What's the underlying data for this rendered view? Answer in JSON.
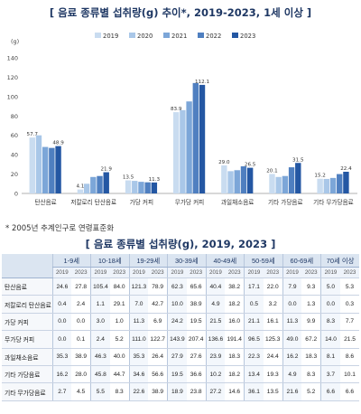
{
  "title_top": "[ 음료 종류별 섭취량(g) 추이*, 2019-2023, 1세 이상 ]",
  "note": "* 2005년 추계인구로 연령표준화",
  "title_bottom": "[ 음료 종류별 섭취량(g), 2019, 2023 ]",
  "colors": {
    "2019": "#c9dcf0",
    "2020": "#a9c7e8",
    "2021": "#7ca6d8",
    "2022": "#4f7fc0",
    "2023": "#2457a3",
    "axis_text": "#444444",
    "grid": "#dddddd"
  },
  "chart_data": {
    "type": "bar",
    "title": "[ 음료 종류별 섭취량(g) 추이*, 2019-2023, 1세 이상 ]",
    "ylabel": "(g)",
    "ylim": [
      0,
      140
    ],
    "yticks": [
      0,
      20,
      40,
      60,
      80,
      100,
      120,
      140
    ],
    "grid": false,
    "legend": "top-center",
    "categories": [
      "탄산음료",
      "저칼로리 탄산음료",
      "가당 커피",
      "무가당 커피",
      "과일채소음료",
      "기타 가당음료",
      "기타 무가당음료"
    ],
    "series": [
      {
        "name": "2019",
        "values": [
          57.7,
          4.1,
          13.5,
          83.9,
          29.0,
          20.1,
          15.2
        ],
        "labels": [
          "57.7",
          "4.1",
          "13.5",
          "83.9",
          "29.0",
          "20.1",
          "15.2"
        ]
      },
      {
        "name": "2020",
        "values": [
          60.0,
          10.0,
          13.0,
          86.0,
          23.0,
          17.0,
          15.0
        ],
        "labels": [
          "",
          "",
          "",
          "",
          "",
          "",
          ""
        ]
      },
      {
        "name": "2021",
        "values": [
          48.0,
          17.0,
          12.0,
          95.0,
          24.0,
          18.0,
          16.0
        ],
        "labels": [
          "",
          "",
          "",
          "",
          "",
          "",
          ""
        ]
      },
      {
        "name": "2022",
        "values": [
          47.0,
          18.0,
          11.5,
          114.0,
          28.0,
          27.0,
          20.0
        ],
        "labels": [
          "",
          "",
          "",
          "",
          "",
          "",
          ""
        ]
      },
      {
        "name": "2023",
        "values": [
          48.9,
          21.9,
          11.3,
          112.1,
          26.5,
          31.5,
          22.4
        ],
        "labels": [
          "48.9",
          "21.9",
          "11.3",
          "112.1",
          "26.5",
          "31.5",
          "22.4"
        ]
      }
    ]
  },
  "table": {
    "corner": "",
    "age_groups": [
      "1-9세",
      "10-18세",
      "19-29세",
      "30-39세",
      "40-49세",
      "50-59세",
      "60-69세",
      "70세 이상"
    ],
    "years": [
      "2019",
      "2023"
    ],
    "rows": [
      {
        "name": "탄산음료",
        "values": [
          "24.6",
          "27.8",
          "105.4",
          "84.0",
          "121.3",
          "78.9",
          "62.3",
          "65.6",
          "40.4",
          "38.2",
          "17.1",
          "22.0",
          "7.9",
          "9.3",
          "5.0",
          "5.3"
        ]
      },
      {
        "name": "저칼로리 탄산음료",
        "values": [
          "0.4",
          "2.4",
          "1.1",
          "29.1",
          "7.0",
          "42.7",
          "10.0",
          "38.9",
          "4.9",
          "18.2",
          "0.5",
          "3.2",
          "0.0",
          "1.3",
          "0.0",
          "0.3"
        ]
      },
      {
        "name": "가당 커피",
        "values": [
          "0.0",
          "0.0",
          "3.0",
          "1.0",
          "11.3",
          "6.9",
          "24.2",
          "19.5",
          "21.5",
          "16.0",
          "21.1",
          "16.1",
          "11.3",
          "9.9",
          "8.3",
          "7.7"
        ]
      },
      {
        "name": "무가당 커피",
        "values": [
          "0.0",
          "0.1",
          "2.4",
          "5.2",
          "111.0",
          "122.7",
          "143.9",
          "207.4",
          "136.6",
          "191.4",
          "96.5",
          "125.3",
          "49.0",
          "67.2",
          "14.0",
          "21.5"
        ]
      },
      {
        "name": "과일채소음료",
        "values": [
          "35.3",
          "38.9",
          "46.3",
          "40.0",
          "35.3",
          "26.4",
          "27.9",
          "27.6",
          "23.9",
          "18.3",
          "22.3",
          "24.4",
          "16.2",
          "18.3",
          "8.1",
          "8.6"
        ]
      },
      {
        "name": "기타 가당음료",
        "values": [
          "16.2",
          "28.0",
          "45.8",
          "44.7",
          "34.6",
          "56.6",
          "19.5",
          "36.6",
          "10.2",
          "18.2",
          "13.4",
          "19.3",
          "4.9",
          "8.3",
          "3.7",
          "10.1"
        ]
      },
      {
        "name": "기타 무가당음료",
        "values": [
          "2.7",
          "4.5",
          "5.5",
          "8.3",
          "22.6",
          "38.9",
          "18.9",
          "23.8",
          "27.2",
          "14.6",
          "36.1",
          "13.5",
          "21.6",
          "5.2",
          "6.6",
          "6.6"
        ]
      }
    ]
  }
}
